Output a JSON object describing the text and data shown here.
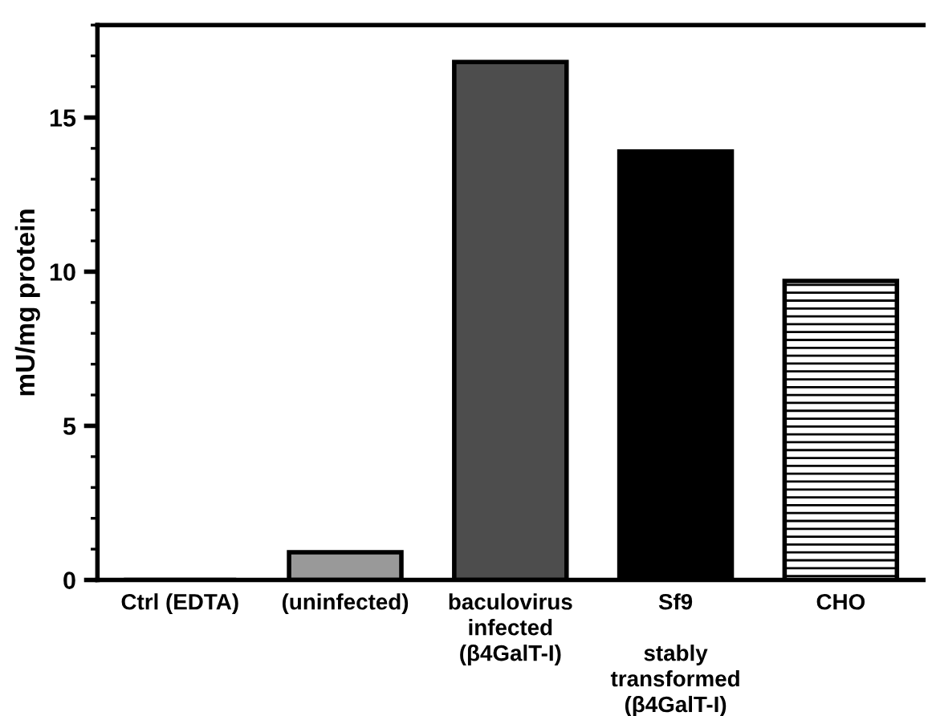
{
  "chart_data": {
    "type": "bar",
    "ylabel": "mU/mg protein",
    "categories": [
      "Ctrl (EDTA)",
      "(uninfected)",
      "baculovirus\ninfected\n(β4GalT-I)",
      "Sf9\n\nstably\ntransformed\n(β4GalT-I)",
      "CHO"
    ],
    "values": [
      0,
      0.9,
      16.8,
      13.9,
      9.7
    ],
    "colors": [
      "#ffffff",
      "#999999",
      "#4d4d4d",
      "#000000",
      "#ffffff"
    ],
    "ylim": [
      0,
      18
    ],
    "yticks": [
      0,
      5,
      10,
      15
    ],
    "grid": false,
    "legend": false
  }
}
